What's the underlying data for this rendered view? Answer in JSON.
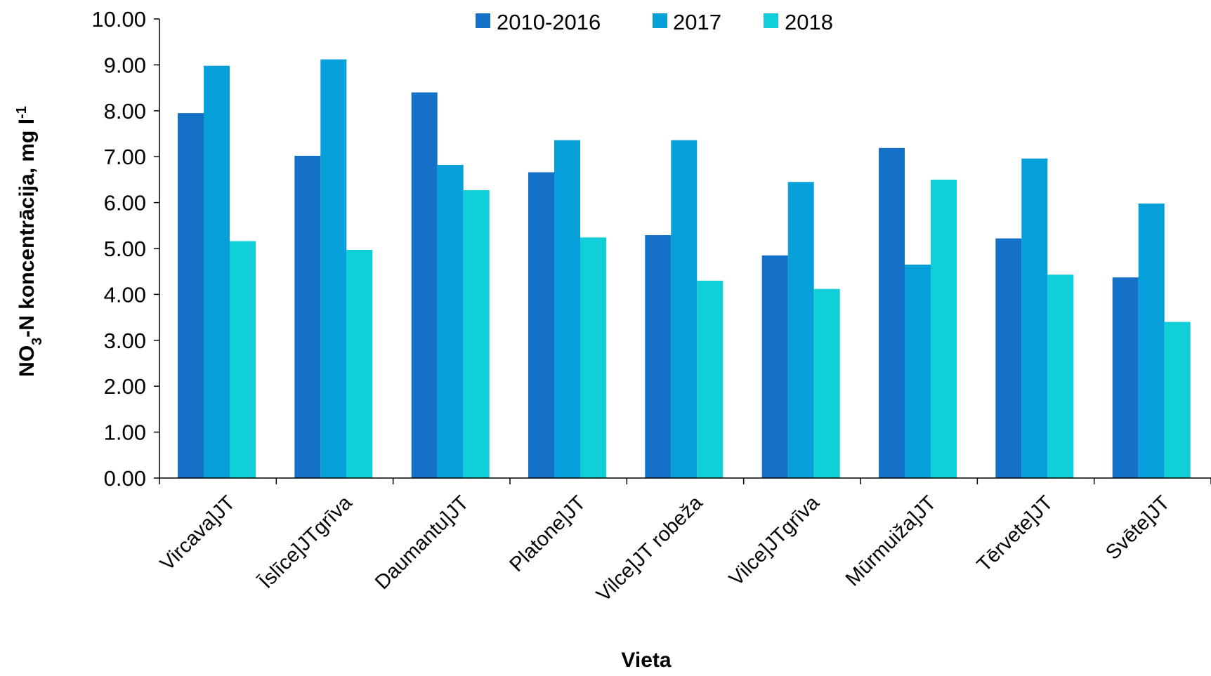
{
  "chart_data": {
    "type": "bar",
    "title": "",
    "xlabel": "Vieta",
    "ylabel": {
      "main": "NO",
      "sub": "3",
      "rest": "-N koncentrācija, mg l",
      "sup": "-1"
    },
    "ylim": [
      0,
      10
    ],
    "yticks": [
      "0.00",
      "1.00",
      "2.00",
      "3.00",
      "4.00",
      "5.00",
      "6.00",
      "7.00",
      "8.00",
      "9.00",
      "10.00"
    ],
    "grid": false,
    "legend_position": "top-center",
    "categories": [
      "Vircava]JT",
      "Īslīce]JTgrīva",
      "Daumantu]JT",
      "Platone]JT",
      "Vilce]JT robeža",
      "Vilce]JTgrīva",
      "Mūrmuiža]JT",
      "Tērvete]JT",
      "Svēte]JT"
    ],
    "series": [
      {
        "name": "2010-2016",
        "color": "#1570C8",
        "values": [
          7.95,
          7.02,
          8.4,
          6.66,
          5.29,
          4.85,
          7.19,
          5.22,
          4.37
        ]
      },
      {
        "name": "2017",
        "color": "#069FDA",
        "values": [
          8.98,
          9.12,
          6.82,
          7.36,
          7.36,
          6.45,
          4.65,
          6.96,
          5.98
        ]
      },
      {
        "name": "2018",
        "color": "#10CFD9",
        "values": [
          5.16,
          4.97,
          6.27,
          5.24,
          4.3,
          4.12,
          6.5,
          4.43,
          3.4
        ]
      }
    ]
  }
}
